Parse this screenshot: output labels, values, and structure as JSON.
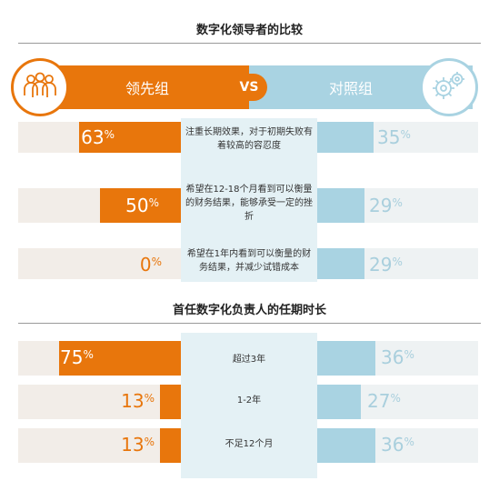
{
  "section1": {
    "title": "数字化领导者的比较"
  },
  "header": {
    "left_label": "领先组",
    "vs_label": "VS",
    "right_label": "对照组"
  },
  "section2": {
    "title": "首任数字化负责人的任期时长"
  },
  "colors": {
    "leader": "#e8760c",
    "control": "#a9d3e2",
    "panel": "#e4f1f5"
  },
  "icons": {
    "left": "people-group-icon",
    "right": "gears-icon"
  },
  "chart_data": [
    {
      "type": "bar",
      "title": "数字化领导者的比较",
      "categories": [
        "注重长期效果，对于初期失败有着较高的容忍度",
        "希望在12-18个月看到可以衡量的财务结果，能够承受一定的挫折",
        "希望在1年内看到可以衡量的财务结果，并减少试错成本"
      ],
      "series": [
        {
          "name": "领先组",
          "values": [
            63,
            50,
            0
          ],
          "labels": [
            "63",
            "50",
            "0"
          ]
        },
        {
          "name": "对照组",
          "values": [
            35,
            29,
            29
          ],
          "labels": [
            "35",
            "29",
            "29"
          ]
        }
      ],
      "unit": "%",
      "ylim": [
        0,
        100
      ]
    },
    {
      "type": "bar",
      "title": "首任数字化负责人的任期时长",
      "categories": [
        "超过3年",
        "1-2年",
        "不足12个月"
      ],
      "series": [
        {
          "name": "领先组",
          "values": [
            75,
            13,
            13
          ],
          "labels": [
            "75",
            "13",
            "13"
          ]
        },
        {
          "name": "对照组",
          "values": [
            36,
            27,
            36
          ],
          "labels": [
            "36",
            "27",
            "36"
          ]
        }
      ],
      "unit": "%",
      "ylim": [
        0,
        100
      ]
    }
  ]
}
